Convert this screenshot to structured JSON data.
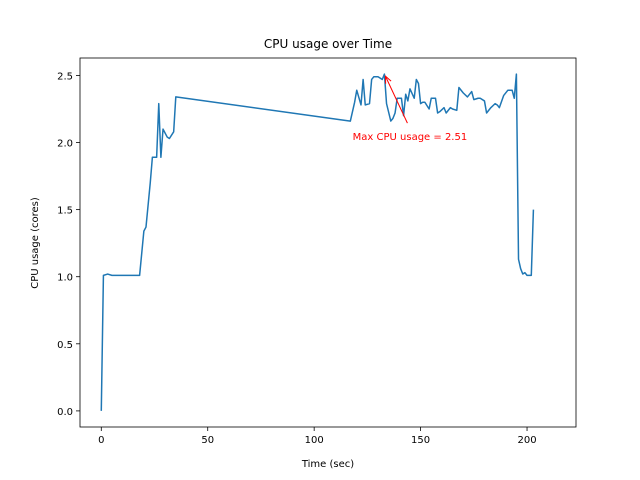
{
  "chart_data": {
    "type": "line",
    "title": "CPU usage over Time",
    "xlabel": "Time (sec)",
    "ylabel": "CPU usage (cores)",
    "xlim": [
      -10,
      223
    ],
    "ylim": [
      -0.12,
      2.63
    ],
    "xticks": [
      0,
      50,
      100,
      150,
      200
    ],
    "yticks": [
      0.0,
      0.5,
      1.0,
      1.5,
      2.0,
      2.5
    ],
    "xtick_labels": [
      "0",
      "50",
      "100",
      "150",
      "200"
    ],
    "ytick_labels": [
      "0.0",
      "0.5",
      "1.0",
      "1.5",
      "2.0",
      "2.5"
    ],
    "grid": false,
    "series": [
      {
        "color": "#1f77b4",
        "points": [
          [
            0,
            0.0
          ],
          [
            1,
            1.01
          ],
          [
            3,
            1.02
          ],
          [
            5,
            1.01
          ],
          [
            10,
            1.01
          ],
          [
            15,
            1.01
          ],
          [
            18,
            1.01
          ],
          [
            20,
            1.34
          ],
          [
            21,
            1.37
          ],
          [
            23,
            1.7
          ],
          [
            24,
            1.89
          ],
          [
            26,
            1.89
          ],
          [
            27,
            2.29
          ],
          [
            28,
            1.89
          ],
          [
            29,
            2.1
          ],
          [
            31,
            2.04
          ],
          [
            32,
            2.03
          ],
          [
            34,
            2.08
          ],
          [
            35,
            2.34
          ],
          [
            117,
            2.16
          ],
          [
            119,
            2.3
          ],
          [
            120,
            2.39
          ],
          [
            122,
            2.28
          ],
          [
            123,
            2.47
          ],
          [
            124,
            2.28
          ],
          [
            126,
            2.29
          ],
          [
            127,
            2.47
          ],
          [
            128,
            2.49
          ],
          [
            130,
            2.49
          ],
          [
            132,
            2.47
          ],
          [
            133,
            2.51
          ],
          [
            134,
            2.29
          ],
          [
            136,
            2.16
          ],
          [
            137,
            2.18
          ],
          [
            138,
            2.22
          ],
          [
            139,
            2.33
          ],
          [
            141,
            2.33
          ],
          [
            142,
            2.2
          ],
          [
            143,
            2.36
          ],
          [
            144,
            2.31
          ],
          [
            145,
            2.4
          ],
          [
            147,
            2.33
          ],
          [
            148,
            2.47
          ],
          [
            149,
            2.44
          ],
          [
            150,
            2.29
          ],
          [
            151,
            2.3
          ],
          [
            152,
            2.3
          ],
          [
            154,
            2.25
          ],
          [
            155,
            2.33
          ],
          [
            157,
            2.33
          ],
          [
            158,
            2.22
          ],
          [
            159,
            2.23
          ],
          [
            161,
            2.26
          ],
          [
            162,
            2.22
          ],
          [
            164,
            2.26
          ],
          [
            165,
            2.25
          ],
          [
            167,
            2.24
          ],
          [
            168,
            2.41
          ],
          [
            170,
            2.37
          ],
          [
            172,
            2.34
          ],
          [
            174,
            2.38
          ],
          [
            175,
            2.32
          ],
          [
            177,
            2.33
          ],
          [
            178,
            2.33
          ],
          [
            180,
            2.31
          ],
          [
            181,
            2.22
          ],
          [
            183,
            2.26
          ],
          [
            185,
            2.29
          ],
          [
            186,
            2.28
          ],
          [
            187,
            2.26
          ],
          [
            189,
            2.35
          ],
          [
            191,
            2.39
          ],
          [
            193,
            2.39
          ],
          [
            194,
            2.33
          ],
          [
            195,
            2.51
          ],
          [
            196,
            1.13
          ],
          [
            197,
            1.06
          ],
          [
            198,
            1.02
          ],
          [
            199,
            1.03
          ],
          [
            200,
            1.01
          ],
          [
            202,
            1.01
          ],
          [
            203,
            1.5
          ]
        ]
      }
    ],
    "annotation": {
      "text": "Max CPU usage = 2.51",
      "color": "#ff0000",
      "point": [
        133,
        2.51
      ],
      "text_anchor": [
        145,
        2.05
      ]
    }
  }
}
